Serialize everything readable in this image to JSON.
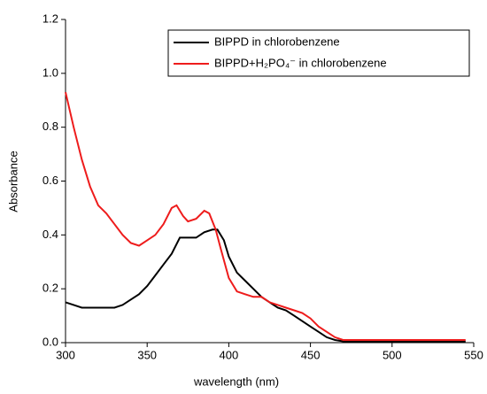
{
  "chart_data": {
    "type": "line",
    "x_label": "wavelength (nm)",
    "y_label": "Absorbance",
    "xlim": [
      300,
      550
    ],
    "xticks": [
      300,
      350,
      400,
      450,
      500,
      550
    ],
    "ylim": [
      0,
      1.2
    ],
    "yticks": [
      {
        "value": 0,
        "label": "0.0"
      },
      0.2,
      0.4,
      0.6,
      0.8,
      {
        "value": 1,
        "label": "1.0"
      },
      1.2
    ],
    "legend": "upper right",
    "series": [
      {
        "name": "BIPPD in chlorobenzene",
        "color": "#000000",
        "x": [
          300,
          305,
          310,
          320,
          330,
          335,
          340,
          345,
          350,
          355,
          360,
          365,
          370,
          375,
          380,
          385,
          390,
          393,
          397,
          400,
          405,
          410,
          415,
          420,
          425,
          430,
          435,
          440,
          445,
          450,
          455,
          460,
          465,
          470,
          480,
          500,
          520,
          545
        ],
        "values": [
          0.15,
          0.14,
          0.13,
          0.13,
          0.13,
          0.14,
          0.16,
          0.18,
          0.21,
          0.25,
          0.29,
          0.33,
          0.39,
          0.39,
          0.39,
          0.41,
          0.42,
          0.42,
          0.38,
          0.32,
          0.26,
          0.23,
          0.2,
          0.17,
          0.15,
          0.13,
          0.12,
          0.1,
          0.08,
          0.06,
          0.04,
          0.02,
          0.01,
          0.005,
          0.005,
          0.005,
          0.005,
          0.005
        ]
      },
      {
        "name": "BIPPD+H₂PO₄⁻ in chlorobenzene",
        "color": "#ee1c1c",
        "x": [
          300,
          305,
          310,
          315,
          320,
          325,
          330,
          335,
          340,
          345,
          350,
          355,
          360,
          365,
          368,
          372,
          375,
          380,
          385,
          388,
          392,
          395,
          400,
          405,
          410,
          415,
          420,
          425,
          430,
          435,
          440,
          445,
          450,
          455,
          460,
          465,
          470,
          480,
          500,
          545
        ],
        "values": [
          0.93,
          0.8,
          0.68,
          0.58,
          0.51,
          0.48,
          0.44,
          0.4,
          0.37,
          0.36,
          0.38,
          0.4,
          0.44,
          0.5,
          0.51,
          0.47,
          0.45,
          0.46,
          0.49,
          0.48,
          0.42,
          0.35,
          0.24,
          0.19,
          0.18,
          0.17,
          0.17,
          0.15,
          0.14,
          0.13,
          0.12,
          0.11,
          0.09,
          0.06,
          0.04,
          0.02,
          0.01,
          0.01,
          0.01,
          0.01
        ]
      }
    ]
  }
}
